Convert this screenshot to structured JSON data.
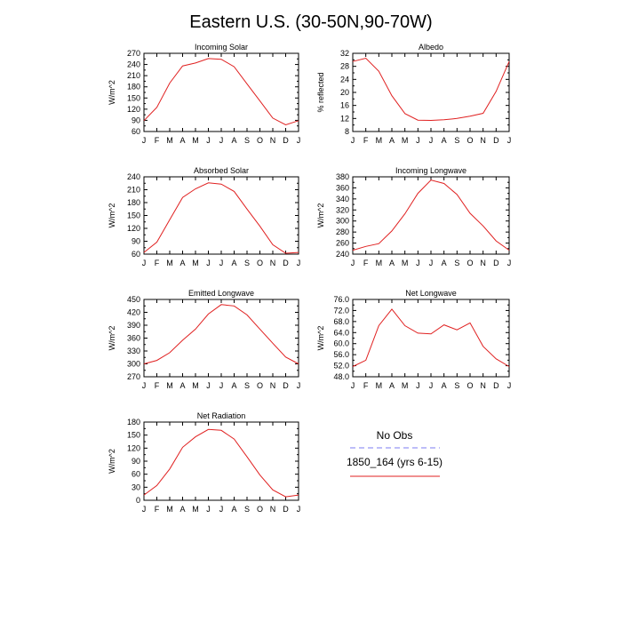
{
  "figure": {
    "title": "Eastern U.S. (30-50N,90-70W)"
  },
  "months": [
    "J",
    "F",
    "M",
    "A",
    "M",
    "J",
    "J",
    "A",
    "S",
    "O",
    "N",
    "D",
    "J"
  ],
  "legend": {
    "items": [
      {
        "label": "No Obs",
        "style": "dashed",
        "color": "#7b7bf0"
      },
      {
        "label": "1850_164 (yrs 6-15)",
        "style": "solid",
        "color": "#e02020"
      }
    ]
  },
  "colors": {
    "model": "#e02020",
    "obs": "#7b7bf0"
  },
  "chart_data": [
    {
      "type": "line",
      "title": "Incoming Solar",
      "ylabel": "W/m^2",
      "ylim": [
        60,
        270
      ],
      "yticks": [
        60,
        90,
        120,
        150,
        180,
        210,
        240,
        270
      ],
      "ytick_labels": [
        "60",
        "90",
        "120",
        "150",
        "180",
        "210",
        "240",
        "270"
      ],
      "series": [
        {
          "values": [
            89,
            125,
            190,
            236,
            244,
            256,
            254,
            234,
            188,
            142,
            96,
            78,
            89
          ]
        }
      ]
    },
    {
      "type": "line",
      "title": "Albedo",
      "ylabel": "% reflected",
      "ylim": [
        8,
        32
      ],
      "yticks": [
        8,
        12,
        16,
        20,
        24,
        28,
        32
      ],
      "ytick_labels": [
        "8",
        "12",
        "16",
        "20",
        "24",
        "28",
        "32"
      ],
      "series": [
        {
          "values": [
            29.5,
            30.5,
            26.5,
            19,
            13.5,
            11.5,
            11.4,
            11.6,
            12,
            12.7,
            13.6,
            20.3,
            29.5
          ]
        }
      ]
    },
    {
      "type": "line",
      "title": "Absorbed Solar",
      "ylabel": "W/m^2",
      "ylim": [
        60,
        240
      ],
      "yticks": [
        60,
        90,
        120,
        150,
        180,
        210,
        240
      ],
      "ytick_labels": [
        "60",
        "90",
        "120",
        "150",
        "180",
        "210",
        "240"
      ],
      "series": [
        {
          "values": [
            64,
            88,
            140,
            192,
            212,
            226,
            223,
            206,
            165,
            125,
            82,
            62,
            64
          ]
        }
      ]
    },
    {
      "type": "line",
      "title": "Incoming Longwave",
      "ylabel": "W/m^2",
      "ylim": [
        240,
        380
      ],
      "yticks": [
        240,
        260,
        280,
        300,
        320,
        340,
        360,
        380
      ],
      "ytick_labels": [
        "240",
        "260",
        "280",
        "300",
        "320",
        "340",
        "360",
        "380"
      ],
      "series": [
        {
          "values": [
            247,
            254,
            259,
            282,
            313,
            350,
            374,
            368,
            348,
            314,
            291,
            264,
            247
          ]
        }
      ]
    },
    {
      "type": "line",
      "title": "Emitted Longwave",
      "ylabel": "W/m^2",
      "ylim": [
        270,
        450
      ],
      "yticks": [
        270,
        300,
        330,
        360,
        390,
        420,
        450
      ],
      "ytick_labels": [
        "270",
        "300",
        "330",
        "360",
        "390",
        "420",
        "450"
      ],
      "series": [
        {
          "values": [
            300,
            308,
            326,
            355,
            381,
            416,
            438,
            435,
            414,
            381,
            348,
            316,
            300
          ]
        }
      ]
    },
    {
      "type": "line",
      "title": "Net Longwave",
      "ylabel": "W/m^2",
      "ylim": [
        48,
        76
      ],
      "yticks": [
        48,
        52,
        56,
        60,
        64,
        68,
        72,
        76
      ],
      "ytick_labels": [
        "48.0",
        "52.0",
        "56.0",
        "60.0",
        "64.0",
        "68.0",
        "72.0",
        "76.0"
      ],
      "series": [
        {
          "values": [
            51.7,
            54,
            66.5,
            72.5,
            66.5,
            63.8,
            63.5,
            66.8,
            65,
            67.5,
            59,
            54.5,
            51.7
          ]
        }
      ]
    },
    {
      "type": "line",
      "title": "Net Radiation",
      "ylabel": "W/m^2",
      "ylim": [
        0,
        180
      ],
      "yticks": [
        0,
        30,
        60,
        90,
        120,
        150,
        180
      ],
      "ytick_labels": [
        "0",
        "30",
        "60",
        "90",
        "120",
        "150",
        "180"
      ],
      "series": [
        {
          "values": [
            12,
            34,
            72,
            122,
            146,
            163,
            161,
            141,
            100,
            58,
            24,
            8,
            12
          ]
        }
      ]
    }
  ]
}
